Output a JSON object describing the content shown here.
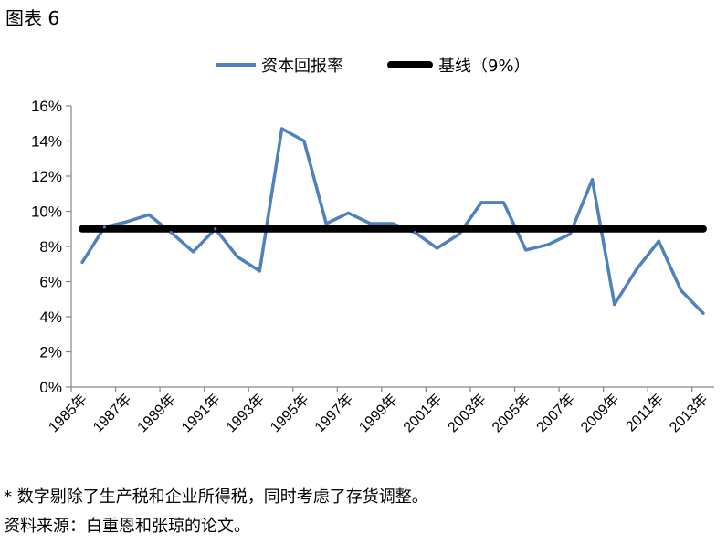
{
  "figure": {
    "label": "图表 6"
  },
  "chart_data": {
    "type": "line",
    "x": [
      "1985年",
      "1986年",
      "1987年",
      "1988年",
      "1989年",
      "1990年",
      "1991年",
      "1992年",
      "1993年",
      "1994年",
      "1995年",
      "1996年",
      "1997年",
      "1998年",
      "1999年",
      "2000年",
      "2001年",
      "2002年",
      "2003年",
      "2004年",
      "2005年",
      "2006年",
      "2007年",
      "2008年",
      "2009年",
      "2010年",
      "2011年",
      "2012年",
      "2013年"
    ],
    "x_tick_labels": [
      "1985年",
      "1987年",
      "1989年",
      "1991年",
      "1993年",
      "1995年",
      "1997年",
      "1999年",
      "2001年",
      "2003年",
      "2005年",
      "2007年",
      "2009年",
      "2011年",
      "2013年"
    ],
    "series": [
      {
        "name": "资本回报率",
        "color": "#4f81bd",
        "values": [
          7.1,
          9.1,
          9.4,
          9.8,
          8.8,
          7.7,
          9.0,
          7.4,
          6.6,
          14.7,
          14.0,
          9.3,
          9.9,
          9.3,
          9.3,
          8.8,
          7.9,
          8.7,
          10.5,
          10.5,
          7.8,
          8.1,
          8.7,
          11.8,
          4.7,
          6.7,
          8.3,
          5.5,
          4.2
        ]
      },
      {
        "name": "基线（9%）",
        "color": "#000000",
        "values": [
          9,
          9,
          9,
          9,
          9,
          9,
          9,
          9,
          9,
          9,
          9,
          9,
          9,
          9,
          9,
          9,
          9,
          9,
          9,
          9,
          9,
          9,
          9,
          9,
          9,
          9,
          9,
          9,
          9
        ]
      }
    ],
    "ylim": [
      0,
      16
    ],
    "yticks": [
      "0%",
      "2%",
      "4%",
      "6%",
      "8%",
      "10%",
      "12%",
      "14%",
      "16%"
    ],
    "ytick_values": [
      0,
      2,
      4,
      6,
      8,
      10,
      12,
      14,
      16
    ],
    "legend_position": "top-center",
    "grid": false,
    "title": "",
    "xlabel": "",
    "ylabel": ""
  },
  "notes": {
    "footnote": "* 数字剔除了生产税和企业所得税，同时考虑了存货调整。",
    "source": "资料来源：白重恩和张琼的论文。"
  }
}
